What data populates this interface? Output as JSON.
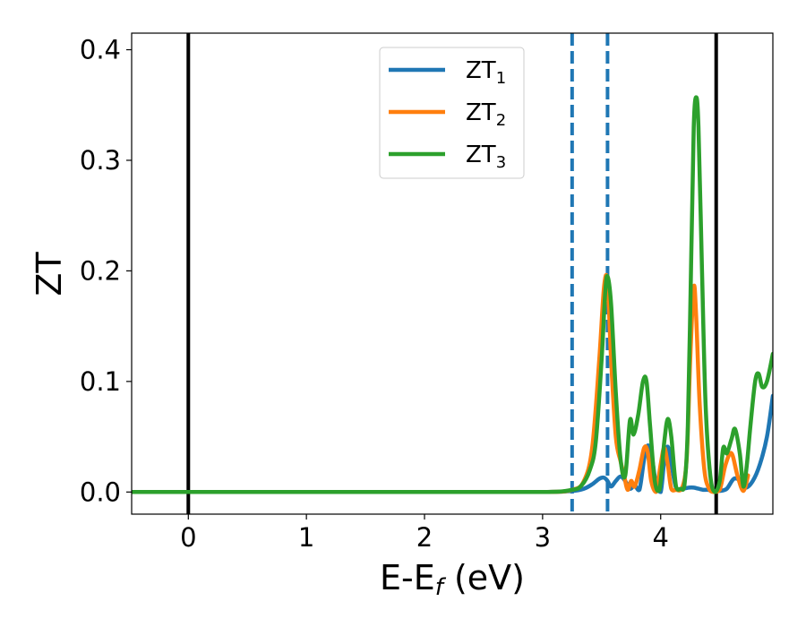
{
  "chart_data": {
    "type": "line",
    "xlabel": "E-E",
    "xlabel_sub": "f",
    "xlabel_unit": " (eV)",
    "ylabel": "ZT",
    "xlim": [
      -0.48,
      4.95
    ],
    "ylim": [
      -0.02,
      0.415
    ],
    "xticks": [
      0,
      1,
      2,
      3,
      4
    ],
    "yticks": [
      0.0,
      0.1,
      0.2,
      0.3,
      0.4
    ],
    "xtick_labels": [
      "0",
      "1",
      "2",
      "3",
      "4"
    ],
    "ytick_labels": [
      "0.0",
      "0.1",
      "0.2",
      "0.3",
      "0.4"
    ],
    "legend_position": "top-center",
    "vlines_solid": [
      0,
      4.47
    ],
    "vlines_dashed": [
      3.25,
      3.55
    ],
    "vline_solid_color": "#000000",
    "vline_dashed_color": "#1f77b4",
    "series": [
      {
        "name": "ZT",
        "name_sub": "1",
        "color": "#1f77b4",
        "x": [
          -0.48,
          0,
          1,
          2,
          3,
          3.25,
          3.35,
          3.42,
          3.48,
          3.52,
          3.55,
          3.58,
          3.62,
          3.66,
          3.7,
          3.74,
          3.78,
          3.82,
          3.86,
          3.89,
          3.92,
          3.96,
          4.0,
          4.03,
          4.06,
          4.09,
          4.13,
          4.18,
          4.24,
          4.28,
          4.32,
          4.36,
          4.4,
          4.45,
          4.5,
          4.56,
          4.62,
          4.68,
          4.72,
          4.78,
          4.84,
          4.9,
          4.95
        ],
        "y": [
          0,
          0,
          0,
          0,
          0,
          0.001,
          0.003,
          0.007,
          0.012,
          0.013,
          0.01,
          0.005,
          0.01,
          0.014,
          0.01,
          0.003,
          0.006,
          0.002,
          0.03,
          0.042,
          0.035,
          0.008,
          0.0,
          0.028,
          0.041,
          0.026,
          0.004,
          0.003,
          0.004,
          0.004,
          0.003,
          0.002,
          0.002,
          0.001,
          0.001,
          0.003,
          0.012,
          0.01,
          0.004,
          0.01,
          0.025,
          0.05,
          0.087
        ]
      },
      {
        "name": "ZT",
        "name_sub": "2",
        "color": "#ff7f0e",
        "x": [
          -0.48,
          0,
          1,
          2,
          3,
          3.25,
          3.35,
          3.42,
          3.48,
          3.52,
          3.55,
          3.58,
          3.62,
          3.66,
          3.69,
          3.72,
          3.75,
          3.78,
          3.82,
          3.86,
          3.89,
          3.92,
          3.96,
          4.0,
          4.03,
          4.06,
          4.09,
          4.13,
          4.18,
          4.22,
          4.25,
          4.28,
          4.3,
          4.33,
          4.37,
          4.41,
          4.45,
          4.5,
          4.55,
          4.6,
          4.65,
          4.7,
          4.74
        ],
        "y": [
          0,
          0,
          0,
          0,
          0,
          0.002,
          0.01,
          0.04,
          0.12,
          0.185,
          0.19,
          0.12,
          0.05,
          0.028,
          0.015,
          0.002,
          0.01,
          0.005,
          0.02,
          0.04,
          0.036,
          0.01,
          0.0,
          0.025,
          0.04,
          0.025,
          0.003,
          0.002,
          0.003,
          0.03,
          0.12,
          0.185,
          0.16,
          0.08,
          0.02,
          0.003,
          0.0,
          0.002,
          0.025,
          0.035,
          0.015,
          0.001,
          0.015
        ]
      },
      {
        "name": "ZT",
        "name_sub": "3",
        "color": "#2ca02c",
        "x": [
          -0.48,
          0,
          1,
          2,
          3,
          3.25,
          3.33,
          3.4,
          3.45,
          3.5,
          3.53,
          3.55,
          3.58,
          3.62,
          3.66,
          3.7,
          3.74,
          3.77,
          3.81,
          3.85,
          3.88,
          3.91,
          3.95,
          3.99,
          4.03,
          4.06,
          4.09,
          4.13,
          4.17,
          4.2,
          4.23,
          4.26,
          4.28,
          4.3,
          4.32,
          4.35,
          4.38,
          4.42,
          4.46,
          4.5,
          4.53,
          4.56,
          4.6,
          4.63,
          4.67,
          4.7,
          4.73,
          4.76,
          4.8,
          4.83,
          4.86,
          4.9,
          4.95
        ],
        "y": [
          0,
          0,
          0,
          0,
          0,
          0.002,
          0.006,
          0.02,
          0.045,
          0.12,
          0.18,
          0.195,
          0.17,
          0.09,
          0.03,
          0.015,
          0.065,
          0.052,
          0.07,
          0.1,
          0.1,
          0.06,
          0.01,
          0.002,
          0.045,
          0.066,
          0.05,
          0.005,
          0.003,
          0.005,
          0.06,
          0.22,
          0.33,
          0.357,
          0.33,
          0.2,
          0.08,
          0.015,
          0.0,
          0.01,
          0.04,
          0.035,
          0.048,
          0.057,
          0.035,
          0.005,
          0.025,
          0.06,
          0.1,
          0.107,
          0.095,
          0.1,
          0.125
        ]
      }
    ]
  }
}
